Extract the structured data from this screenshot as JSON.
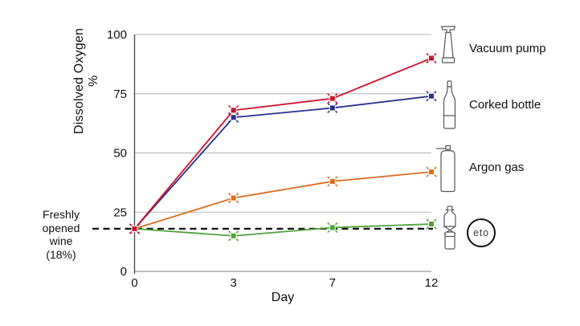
{
  "figure": {
    "y_axis_label": "Dissolved Oxygen %",
    "x_axis_label": "Day",
    "annotation": "Freshly\nopened\nwine\n(18%)"
  },
  "legend": [
    {
      "label": "Vacuum pump",
      "icon": "vacuum-pump-icon"
    },
    {
      "label": "Corked bottle",
      "icon": "corked-bottle-icon"
    },
    {
      "label": "Argon gas",
      "icon": "argon-gas-icon"
    },
    {
      "label": "eto",
      "icon": "eto-decanter-icon",
      "logo_text": "eto"
    }
  ],
  "chart_data": {
    "type": "line",
    "title": "",
    "xlabel": "Day",
    "ylabel": "Dissolved Oxygen %",
    "x_categories": [
      0,
      3,
      7,
      12
    ],
    "y_ticks": [
      0,
      25,
      50,
      75,
      100
    ],
    "ylim": [
      0,
      100
    ],
    "grid": "horizontal",
    "legend_position": "right",
    "series": [
      {
        "name": "Vacuum pump",
        "color": "#d0112b",
        "values": [
          18,
          68,
          73,
          90
        ]
      },
      {
        "name": "Corked bottle",
        "color": "#28308f",
        "values": [
          18,
          65,
          69,
          74
        ]
      },
      {
        "name": "Argon gas",
        "color": "#dd6b1e",
        "values": [
          18,
          31,
          38,
          42
        ]
      },
      {
        "name": "eto",
        "color": "#4fa33a",
        "values": [
          18,
          15,
          18.5,
          20
        ]
      }
    ],
    "reference_line": {
      "value": 18,
      "label": "Freshly opened wine (18%)",
      "style": "dashed",
      "color": "#111111"
    },
    "colors": {
      "gridline": "#b4b4b4",
      "y_axis": "#454545",
      "x_axis": "#9a9a9a",
      "tick_label": "#111111"
    }
  }
}
